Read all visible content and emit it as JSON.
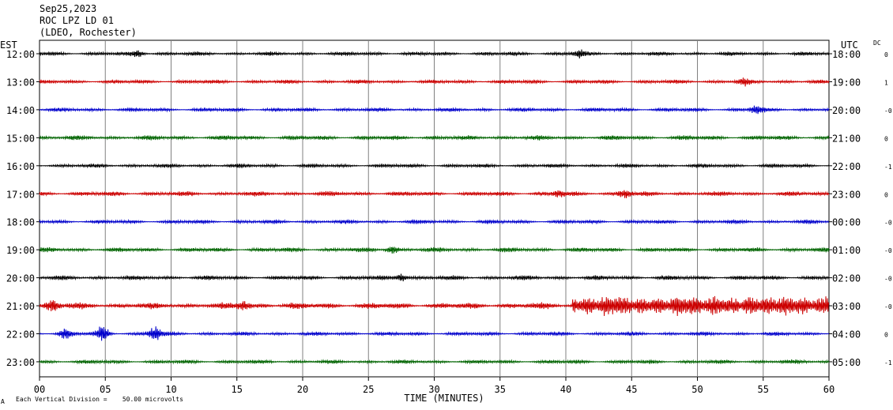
{
  "header": {
    "date": "Sep25,2023",
    "station": "ROC LPZ LD 01",
    "network": "(LDEO, Rochester)"
  },
  "footer": {
    "scale_note": "Each Vertical Division =    50.00 microvolts",
    "corner_mark": "A"
  },
  "chart_data": {
    "type": "line",
    "title": "Sep25,2023 ROC LPZ LD 01 (LDEO, Rochester)",
    "xlabel": "TIME (MINUTES)",
    "left_axis_title": "EST",
    "right_axis_title": "UTC",
    "dc_title": "DC",
    "xlim": [
      0,
      60
    ],
    "x_ticks": [
      0,
      5,
      10,
      15,
      20,
      25,
      30,
      35,
      40,
      45,
      50,
      55,
      60
    ],
    "x_tick_labels": [
      "00",
      "05",
      "10",
      "15",
      "20",
      "25",
      "30",
      "35",
      "40",
      "45",
      "50",
      "55",
      "60"
    ],
    "grid": true,
    "colors": {
      "black": "#000000",
      "red": "#cc0000",
      "blue": "#0000cc",
      "green": "#006400"
    },
    "traces": [
      {
        "est": "12:00",
        "utc": "18:00",
        "dc": "0",
        "color": "#000000",
        "amp": 3,
        "bursts": [
          {
            "t": 7.5,
            "amp": 4
          },
          {
            "t": 41,
            "amp": 4
          }
        ]
      },
      {
        "est": "13:00",
        "utc": "19:00",
        "dc": "1",
        "color": "#cc0000",
        "amp": 3,
        "bursts": [
          {
            "t": 53.5,
            "amp": 4
          }
        ]
      },
      {
        "est": "14:00",
        "utc": "20:00",
        "dc": "-0",
        "color": "#0000cc",
        "amp": 3,
        "bursts": [
          {
            "t": 54.5,
            "amp": 5
          }
        ]
      },
      {
        "est": "15:00",
        "utc": "21:00",
        "dc": "0",
        "color": "#006400",
        "amp": 3.5,
        "bursts": []
      },
      {
        "est": "16:00",
        "utc": "22:00",
        "dc": "-1",
        "color": "#000000",
        "amp": 3,
        "bursts": []
      },
      {
        "est": "17:00",
        "utc": "23:00",
        "dc": "0",
        "color": "#cc0000",
        "amp": 3.5,
        "bursts": [
          {
            "t": 44.5,
            "amp": 5
          },
          {
            "t": 39.5,
            "amp": 4
          }
        ]
      },
      {
        "est": "18:00",
        "utc": "00:00",
        "dc": "-0",
        "color": "#0000cc",
        "amp": 3,
        "bursts": []
      },
      {
        "est": "19:00",
        "utc": "01:00",
        "dc": "-0",
        "color": "#006400",
        "amp": 3.5,
        "bursts": [
          {
            "t": 26.8,
            "amp": 5
          }
        ]
      },
      {
        "est": "20:00",
        "utc": "02:00",
        "dc": "-0",
        "color": "#000000",
        "amp": 3.5,
        "bursts": [
          {
            "t": 27.5,
            "amp": 5
          }
        ]
      },
      {
        "est": "21:00",
        "utc": "03:00",
        "dc": "-0",
        "color": "#cc0000",
        "amp": 5,
        "bursts": [
          {
            "t": 1,
            "amp": 6
          },
          {
            "t": 15.5,
            "amp": 5
          }
        ],
        "growth": {
          "from": 40.5,
          "amp": 10
        }
      },
      {
        "est": "22:00",
        "utc": "04:00",
        "dc": "0",
        "color": "#0000cc",
        "amp": 3,
        "bursts": [
          {
            "t": 2,
            "amp": 6
          },
          {
            "t": 4.8,
            "amp": 10
          },
          {
            "t": 8.8,
            "amp": 9
          }
        ]
      },
      {
        "est": "23:00",
        "utc": "05:00",
        "dc": "-1",
        "color": "#006400",
        "amp": 3,
        "bursts": []
      }
    ]
  }
}
